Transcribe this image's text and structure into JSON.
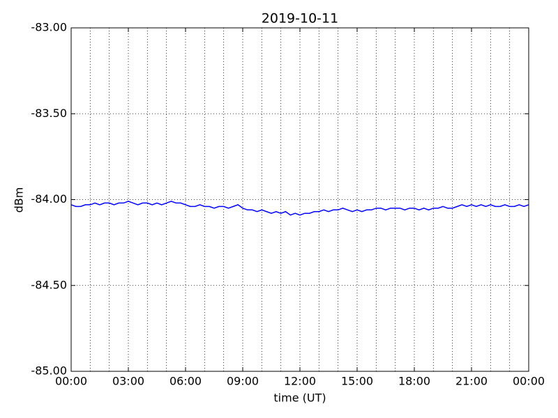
{
  "chart_data": {
    "type": "line",
    "title": "2019-10-11",
    "x_label": "time (UT)",
    "y_label": "dBm",
    "x": [
      0,
      0.25,
      0.5,
      0.75,
      1,
      1.25,
      1.5,
      1.75,
      2,
      2.25,
      2.5,
      2.75,
      3,
      3.25,
      3.5,
      3.75,
      4,
      4.25,
      4.5,
      4.75,
      5,
      5.25,
      5.5,
      5.75,
      6,
      6.25,
      6.5,
      6.75,
      7,
      7.25,
      7.5,
      7.75,
      8,
      8.25,
      8.5,
      8.75,
      9,
      9.25,
      9.5,
      9.75,
      10,
      10.25,
      10.5,
      10.75,
      11,
      11.25,
      11.5,
      11.75,
      12,
      12.25,
      12.5,
      12.75,
      13,
      13.25,
      13.5,
      13.75,
      14,
      14.25,
      14.5,
      14.75,
      15,
      15.25,
      15.5,
      15.75,
      16,
      16.25,
      16.5,
      16.75,
      17,
      17.25,
      17.5,
      17.75,
      18,
      18.25,
      18.5,
      18.75,
      19,
      19.25,
      19.5,
      19.75,
      20,
      20.25,
      20.5,
      20.75,
      21,
      21.25,
      21.5,
      21.75,
      22,
      22.25,
      22.5,
      22.75,
      23,
      23.25,
      23.5,
      23.75,
      24
    ],
    "series": [
      {
        "color": "#0000ff",
        "values": [
          -84.03,
          -84.04,
          -84.04,
          -84.03,
          -84.03,
          -84.02,
          -84.03,
          -84.02,
          -84.02,
          -84.03,
          -84.02,
          -84.02,
          -84.01,
          -84.02,
          -84.03,
          -84.02,
          -84.02,
          -84.03,
          -84.02,
          -84.03,
          -84.02,
          -84.01,
          -84.02,
          -84.02,
          -84.03,
          -84.04,
          -84.04,
          -84.03,
          -84.04,
          -84.04,
          -84.05,
          -84.04,
          -84.04,
          -84.05,
          -84.04,
          -84.03,
          -84.05,
          -84.06,
          -84.06,
          -84.07,
          -84.06,
          -84.07,
          -84.08,
          -84.07,
          -84.08,
          -84.07,
          -84.09,
          -84.08,
          -84.09,
          -84.08,
          -84.08,
          -84.07,
          -84.07,
          -84.06,
          -84.07,
          -84.06,
          -84.06,
          -84.05,
          -84.06,
          -84.07,
          -84.06,
          -84.07,
          -84.06,
          -84.06,
          -84.05,
          -84.05,
          -84.06,
          -84.05,
          -84.05,
          -84.05,
          -84.06,
          -84.05,
          -84.05,
          -84.06,
          -84.05,
          -84.06,
          -84.05,
          -84.05,
          -84.04,
          -84.05,
          -84.05,
          -84.04,
          -84.03,
          -84.04,
          -84.03,
          -84.04,
          -84.03,
          -84.04,
          -84.03,
          -84.04,
          -84.04,
          -84.03,
          -84.04,
          -84.04,
          -84.03,
          -84.04,
          -84.03
        ]
      }
    ],
    "xlim": [
      0,
      24
    ],
    "xticks": [
      {
        "value": 0,
        "label": "00:00"
      },
      {
        "value": 3,
        "label": "03:00"
      },
      {
        "value": 6,
        "label": "06:00"
      },
      {
        "value": 9,
        "label": "09:00"
      },
      {
        "value": 12,
        "label": "12:00"
      },
      {
        "value": 15,
        "label": "15:00"
      },
      {
        "value": 18,
        "label": "18:00"
      },
      {
        "value": 21,
        "label": "21:00"
      },
      {
        "value": 24,
        "label": "00:00"
      }
    ],
    "x_grid_lines": [
      1,
      2,
      3,
      4,
      5,
      6,
      7,
      8,
      9,
      10,
      11,
      12,
      13,
      14,
      15,
      16,
      17,
      18,
      19,
      20,
      21,
      22,
      23
    ],
    "ylim": [
      -85,
      -83
    ],
    "yticks": [
      {
        "value": -85,
        "label": "-85.00"
      },
      {
        "value": -84.5,
        "label": "-84.50"
      },
      {
        "value": -84,
        "label": "-84.00"
      },
      {
        "value": -83.5,
        "label": "-83.50"
      },
      {
        "value": -83,
        "label": "-83.00"
      }
    ],
    "grid": true
  }
}
